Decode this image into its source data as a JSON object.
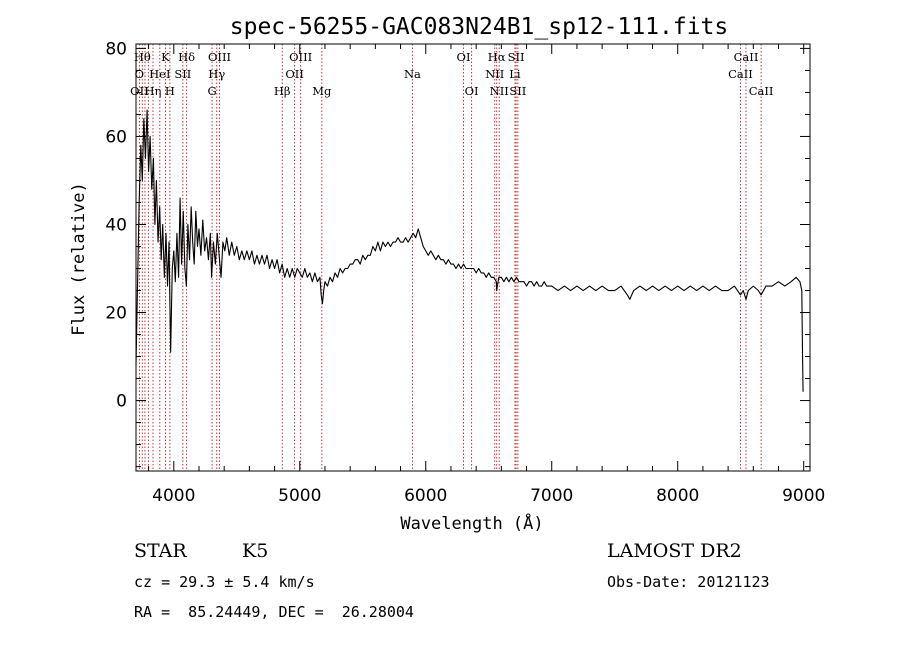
{
  "chart_data": {
    "type": "line",
    "title": "spec-56255-GAC083N24B1_sp12-111.fits",
    "xlabel": "Wavelength (Å)",
    "ylabel": "Flux (relative)",
    "xlim": [
      3700,
      9050
    ],
    "ylim": [
      -16,
      81
    ],
    "xticks": [
      4000,
      5000,
      6000,
      7000,
      8000,
      9000
    ],
    "yticks": [
      0,
      20,
      40,
      60,
      80
    ],
    "grid": false,
    "series": [
      {
        "color": "#000000",
        "points": [
          [
            3700,
            8
          ],
          [
            3712,
            26
          ],
          [
            3725,
            45
          ],
          [
            3738,
            58
          ],
          [
            3750,
            50
          ],
          [
            3762,
            64
          ],
          [
            3775,
            55
          ],
          [
            3788,
            66
          ],
          [
            3800,
            52
          ],
          [
            3812,
            60
          ],
          [
            3825,
            48
          ],
          [
            3838,
            55
          ],
          [
            3850,
            40
          ],
          [
            3862,
            50
          ],
          [
            3875,
            36
          ],
          [
            3888,
            44
          ],
          [
            3900,
            32
          ],
          [
            3912,
            40
          ],
          [
            3925,
            28
          ],
          [
            3938,
            38
          ],
          [
            3950,
            26
          ],
          [
            3962,
            36
          ],
          [
            3975,
            11
          ],
          [
            3988,
            30
          ],
          [
            4000,
            34
          ],
          [
            4012,
            27
          ],
          [
            4025,
            38
          ],
          [
            4038,
            28
          ],
          [
            4050,
            46
          ],
          [
            4062,
            31
          ],
          [
            4075,
            43
          ],
          [
            4088,
            30
          ],
          [
            4100,
            26
          ],
          [
            4112,
            40
          ],
          [
            4125,
            32
          ],
          [
            4138,
            44
          ],
          [
            4150,
            36
          ],
          [
            4162,
            31
          ],
          [
            4175,
            43
          ],
          [
            4188,
            35
          ],
          [
            4200,
            39
          ],
          [
            4215,
            33
          ],
          [
            4230,
            41
          ],
          [
            4245,
            34
          ],
          [
            4260,
            37
          ],
          [
            4275,
            32
          ],
          [
            4290,
            38
          ],
          [
            4300,
            28
          ],
          [
            4315,
            36
          ],
          [
            4330,
            31
          ],
          [
            4345,
            38
          ],
          [
            4360,
            33
          ],
          [
            4375,
            28
          ],
          [
            4390,
            36
          ],
          [
            4405,
            34
          ],
          [
            4420,
            37
          ],
          [
            4440,
            33
          ],
          [
            4460,
            36
          ],
          [
            4480,
            33
          ],
          [
            4500,
            35
          ],
          [
            4520,
            32
          ],
          [
            4540,
            34
          ],
          [
            4560,
            32
          ],
          [
            4580,
            34
          ],
          [
            4600,
            32
          ],
          [
            4620,
            34
          ],
          [
            4640,
            31
          ],
          [
            4660,
            33
          ],
          [
            4680,
            31
          ],
          [
            4700,
            33
          ],
          [
            4720,
            31
          ],
          [
            4740,
            33
          ],
          [
            4760,
            30
          ],
          [
            4780,
            32
          ],
          [
            4800,
            30
          ],
          [
            4820,
            32
          ],
          [
            4840,
            29
          ],
          [
            4860,
            31
          ],
          [
            4880,
            28
          ],
          [
            4900,
            30
          ],
          [
            4920,
            28
          ],
          [
            4940,
            30
          ],
          [
            4960,
            28
          ],
          [
            4980,
            30
          ],
          [
            5000,
            29
          ],
          [
            5020,
            28
          ],
          [
            5040,
            30
          ],
          [
            5060,
            28
          ],
          [
            5080,
            29
          ],
          [
            5100,
            27
          ],
          [
            5120,
            29
          ],
          [
            5140,
            27
          ],
          [
            5160,
            28
          ],
          [
            5170,
            24
          ],
          [
            5180,
            22
          ],
          [
            5190,
            25
          ],
          [
            5200,
            27
          ],
          [
            5220,
            26
          ],
          [
            5240,
            28
          ],
          [
            5260,
            27
          ],
          [
            5280,
            29
          ],
          [
            5300,
            28
          ],
          [
            5320,
            30
          ],
          [
            5340,
            29
          ],
          [
            5360,
            30
          ],
          [
            5380,
            30
          ],
          [
            5400,
            31
          ],
          [
            5420,
            31
          ],
          [
            5440,
            32
          ],
          [
            5460,
            32
          ],
          [
            5480,
            31
          ],
          [
            5500,
            33
          ],
          [
            5520,
            32
          ],
          [
            5540,
            33
          ],
          [
            5560,
            33
          ],
          [
            5580,
            35
          ],
          [
            5600,
            34
          ],
          [
            5620,
            36
          ],
          [
            5640,
            34
          ],
          [
            5660,
            36
          ],
          [
            5680,
            35
          ],
          [
            5700,
            36
          ],
          [
            5720,
            35
          ],
          [
            5740,
            36
          ],
          [
            5760,
            36
          ],
          [
            5780,
            37
          ],
          [
            5800,
            36
          ],
          [
            5820,
            36
          ],
          [
            5840,
            37
          ],
          [
            5860,
            36
          ],
          [
            5880,
            37
          ],
          [
            5900,
            38
          ],
          [
            5920,
            37
          ],
          [
            5940,
            39
          ],
          [
            5960,
            37
          ],
          [
            5980,
            35
          ],
          [
            6000,
            34
          ],
          [
            6020,
            33
          ],
          [
            6040,
            34
          ],
          [
            6060,
            33
          ],
          [
            6080,
            32
          ],
          [
            6100,
            33
          ],
          [
            6120,
            32
          ],
          [
            6140,
            32
          ],
          [
            6160,
            31
          ],
          [
            6180,
            32
          ],
          [
            6200,
            31
          ],
          [
            6220,
            31
          ],
          [
            6240,
            30
          ],
          [
            6260,
            31
          ],
          [
            6280,
            30
          ],
          [
            6300,
            31
          ],
          [
            6320,
            30
          ],
          [
            6340,
            30
          ],
          [
            6360,
            30
          ],
          [
            6380,
            30
          ],
          [
            6400,
            29
          ],
          [
            6420,
            30
          ],
          [
            6440,
            29
          ],
          [
            6460,
            29
          ],
          [
            6480,
            28
          ],
          [
            6500,
            29
          ],
          [
            6520,
            28
          ],
          [
            6540,
            28
          ],
          [
            6560,
            27
          ],
          [
            6563,
            25
          ],
          [
            6580,
            28
          ],
          [
            6600,
            28
          ],
          [
            6620,
            27
          ],
          [
            6640,
            28
          ],
          [
            6660,
            27
          ],
          [
            6680,
            28
          ],
          [
            6700,
            27
          ],
          [
            6720,
            28
          ],
          [
            6740,
            27
          ],
          [
            6760,
            27
          ],
          [
            6780,
            27
          ],
          [
            6800,
            26
          ],
          [
            6820,
            27
          ],
          [
            6840,
            27
          ],
          [
            6860,
            26
          ],
          [
            6880,
            27
          ],
          [
            6900,
            26
          ],
          [
            6920,
            26
          ],
          [
            6940,
            27
          ],
          [
            6960,
            26
          ],
          [
            6980,
            26
          ],
          [
            7000,
            26
          ],
          [
            7050,
            25
          ],
          [
            7100,
            26
          ],
          [
            7150,
            25
          ],
          [
            7200,
            26
          ],
          [
            7250,
            25
          ],
          [
            7300,
            26
          ],
          [
            7350,
            25
          ],
          [
            7400,
            26
          ],
          [
            7450,
            25
          ],
          [
            7500,
            25
          ],
          [
            7550,
            26
          ],
          [
            7600,
            24
          ],
          [
            7620,
            23
          ],
          [
            7650,
            25
          ],
          [
            7700,
            26
          ],
          [
            7750,
            25
          ],
          [
            7800,
            26
          ],
          [
            7850,
            25
          ],
          [
            7900,
            26
          ],
          [
            7950,
            25
          ],
          [
            8000,
            26
          ],
          [
            8050,
            25
          ],
          [
            8100,
            26
          ],
          [
            8150,
            25
          ],
          [
            8200,
            26
          ],
          [
            8250,
            25
          ],
          [
            8300,
            26
          ],
          [
            8350,
            25
          ],
          [
            8400,
            25
          ],
          [
            8450,
            26
          ],
          [
            8498,
            24
          ],
          [
            8520,
            25
          ],
          [
            8542,
            23
          ],
          [
            8560,
            25
          ],
          [
            8600,
            26
          ],
          [
            8640,
            25
          ],
          [
            8662,
            24
          ],
          [
            8700,
            26
          ],
          [
            8750,
            26
          ],
          [
            8800,
            27
          ],
          [
            8850,
            26
          ],
          [
            8900,
            27
          ],
          [
            8940,
            28
          ],
          [
            8970,
            27
          ],
          [
            8985,
            25
          ],
          [
            8990,
            12
          ],
          [
            8995,
            2
          ]
        ]
      }
    ],
    "lines": {
      "color": "#b22222",
      "wavelengths": [
        3727,
        3750,
        3771,
        3798,
        3835,
        3889,
        3934,
        3969,
        4072,
        4102,
        4304,
        4341,
        4363,
        4861,
        4959,
        5007,
        5175,
        5894,
        6300,
        6364,
        6548,
        6563,
        6583,
        6708,
        6717,
        6731,
        8498,
        8542,
        8662
      ],
      "labels": [
        {
          "text": "Hθ",
          "x": 3750,
          "row": 0
        },
        {
          "text": "K",
          "x": 3934,
          "row": 0
        },
        {
          "text": "Hδ",
          "x": 4102,
          "row": 0
        },
        {
          "text": "OIII",
          "x": 4363,
          "row": 0
        },
        {
          "text": "OIII",
          "x": 5007,
          "row": 0
        },
        {
          "text": "OI",
          "x": 6300,
          "row": 0
        },
        {
          "text": "Hα",
          "x": 6563,
          "row": 0
        },
        {
          "text": "SII",
          "x": 6717,
          "row": 0
        },
        {
          "text": "CaII",
          "x": 8542,
          "row": 0
        },
        {
          "text": "O",
          "x": 3727,
          "row": 1
        },
        {
          "text": "HeI",
          "x": 3889,
          "row": 1
        },
        {
          "text": "SII",
          "x": 4072,
          "row": 1
        },
        {
          "text": "Hγ",
          "x": 4341,
          "row": 1
        },
        {
          "text": "OII",
          "x": 4959,
          "row": 1
        },
        {
          "text": "Na",
          "x": 5894,
          "row": 1
        },
        {
          "text": "NII",
          "x": 6548,
          "row": 1
        },
        {
          "text": "Li",
          "x": 6708,
          "row": 1
        },
        {
          "text": "CaII",
          "x": 8498,
          "row": 1
        },
        {
          "text": "OII",
          "x": 3727,
          "row": 2
        },
        {
          "text": "Hη",
          "x": 3835,
          "row": 2
        },
        {
          "text": "H",
          "x": 3969,
          "row": 2
        },
        {
          "text": "G",
          "x": 4304,
          "row": 2
        },
        {
          "text": "Hβ",
          "x": 4861,
          "row": 2
        },
        {
          "text": "Mg",
          "x": 5175,
          "row": 2
        },
        {
          "text": "OI",
          "x": 6364,
          "row": 2
        },
        {
          "text": "NII",
          "x": 6583,
          "row": 2
        },
        {
          "text": "SII",
          "x": 6731,
          "row": 2
        },
        {
          "text": "CaII",
          "x": 8662,
          "row": 2
        }
      ]
    }
  },
  "info": {
    "class": "STAR",
    "subclass": "K5",
    "survey": "LAMOST DR2",
    "cz": "cz = 29.3 ± 5.4 km/s",
    "obs_date": "Obs-Date: 20121123",
    "coords": "RA =  85.24449, DEC =  26.28004"
  }
}
